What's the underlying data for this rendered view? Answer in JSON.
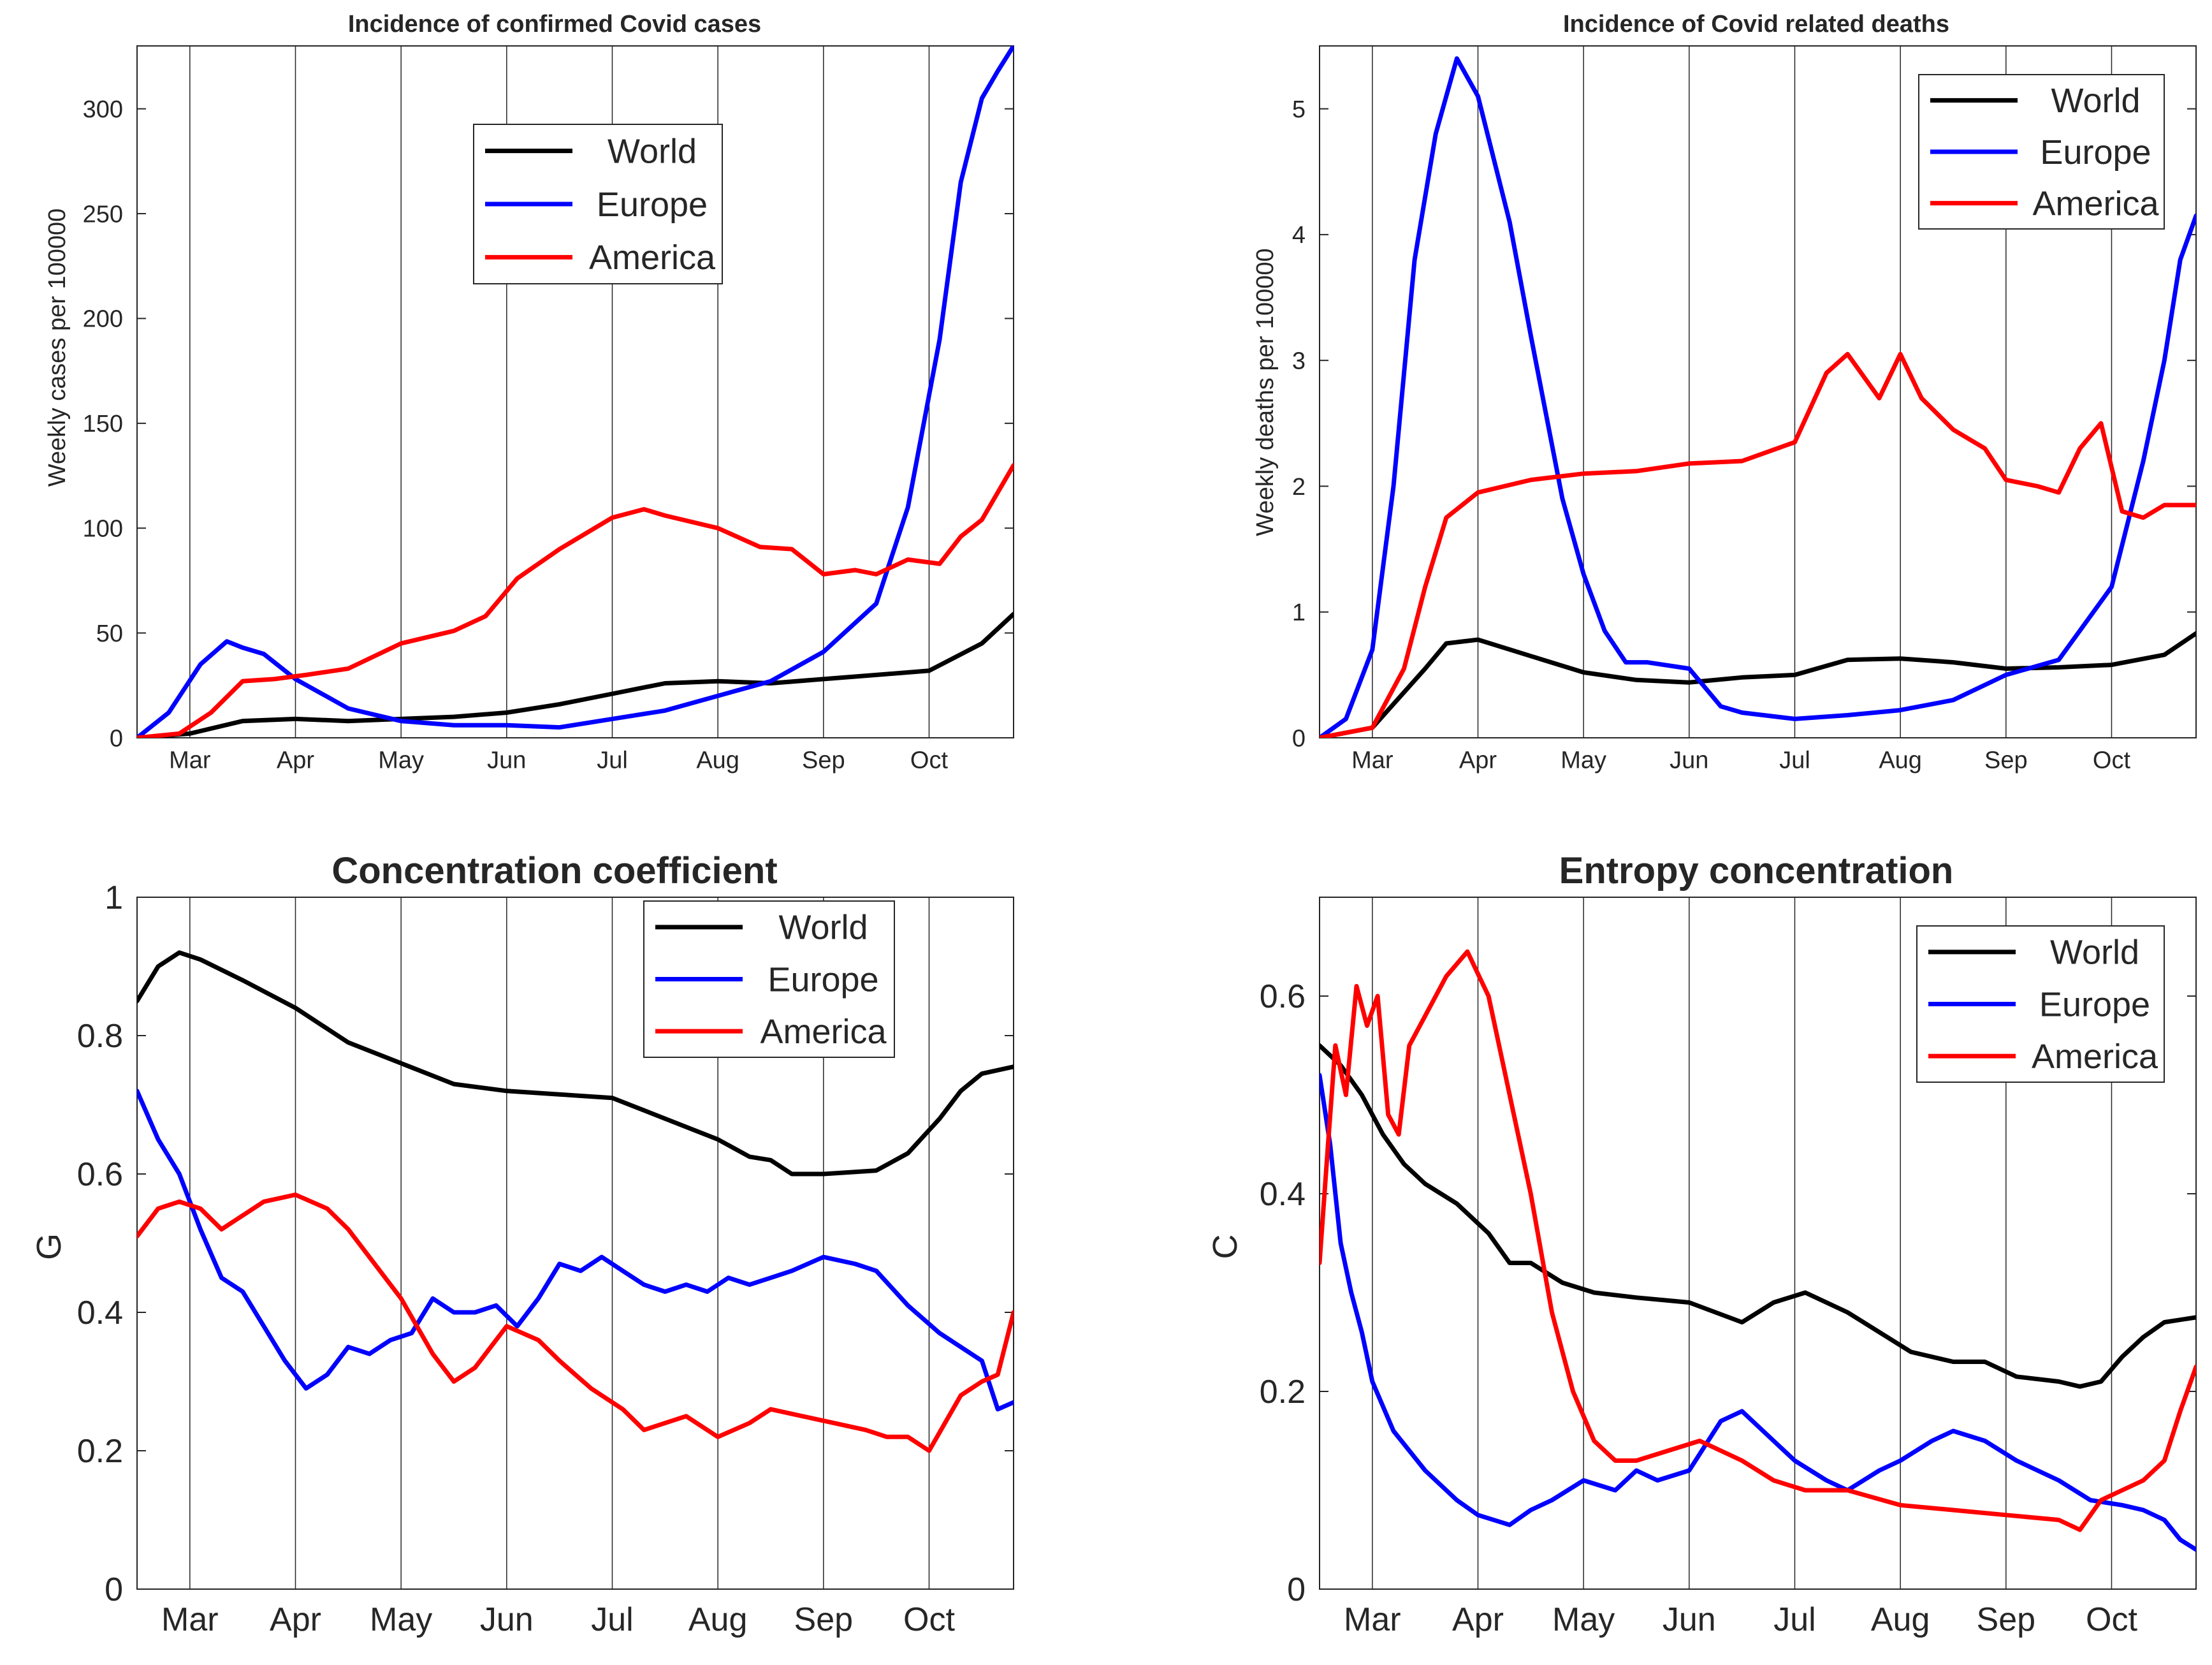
{
  "chart_data": [
    {
      "type": "line",
      "title": "Incidence of confirmed Covid cases",
      "xlabel": "",
      "ylabel": "Weekly cases per 100000",
      "x_ticks": [
        "Mar",
        "Apr",
        "May",
        "Jun",
        "Jul",
        "Aug",
        "Sep",
        "Oct"
      ],
      "xlim": [
        0,
        8.3
      ],
      "ylim": [
        0,
        330
      ],
      "y_ticks": [
        0,
        50,
        100,
        150,
        200,
        250,
        300
      ],
      "legend_position": "upper-center",
      "series": [
        {
          "name": "World",
          "color": "#000000",
          "x": [
            0,
            0.5,
            1.0,
            1.5,
            2.0,
            2.5,
            3.0,
            3.5,
            4.0,
            4.5,
            5.0,
            5.5,
            6.0,
            6.5,
            7.0,
            7.5,
            8.0,
            8.3
          ],
          "y": [
            0,
            2,
            8,
            9,
            8,
            9,
            10,
            12,
            16,
            21,
            26,
            27,
            26,
            28,
            30,
            32,
            45,
            59
          ]
        },
        {
          "name": "Europe",
          "color": "#0000ff",
          "x": [
            0,
            0.3,
            0.6,
            0.85,
            1.0,
            1.2,
            1.5,
            2.0,
            2.5,
            3.0,
            3.5,
            4.0,
            4.5,
            5.0,
            5.5,
            6.0,
            6.5,
            7.0,
            7.3,
            7.6,
            7.8,
            8.0,
            8.15,
            8.3
          ],
          "y": [
            0,
            12,
            35,
            46,
            43,
            40,
            28,
            14,
            8,
            6,
            6,
            5,
            9,
            13,
            20,
            27,
            41,
            64,
            110,
            190,
            265,
            305,
            318,
            330
          ]
        },
        {
          "name": "America",
          "color": "#ff0000",
          "x": [
            0,
            0.4,
            0.7,
            1.0,
            1.3,
            1.6,
            2.0,
            2.5,
            3.0,
            3.3,
            3.6,
            4.0,
            4.5,
            4.8,
            5.0,
            5.5,
            5.9,
            6.2,
            6.5,
            6.8,
            7.0,
            7.3,
            7.6,
            7.8,
            8.0,
            8.3
          ],
          "y": [
            0,
            2,
            12,
            27,
            28,
            30,
            33,
            45,
            51,
            58,
            76,
            90,
            105,
            109,
            106,
            100,
            91,
            90,
            78,
            80,
            78,
            85,
            83,
            96,
            104,
            130
          ]
        }
      ]
    },
    {
      "type": "line",
      "title": "Incidence of Covid related deaths",
      "xlabel": "",
      "ylabel": "Weekly deaths per 100000",
      "x_ticks": [
        "Mar",
        "Apr",
        "May",
        "Jun",
        "Jul",
        "Aug",
        "Sep",
        "Oct"
      ],
      "xlim": [
        0,
        8.3
      ],
      "ylim": [
        0,
        5.5
      ],
      "y_ticks": [
        0,
        1,
        2,
        3,
        4,
        5
      ],
      "legend_position": "top-right",
      "series": [
        {
          "name": "World",
          "color": "#000000",
          "x": [
            0,
            0.5,
            1.0,
            1.2,
            1.5,
            2.0,
            2.5,
            3.0,
            3.5,
            4.0,
            4.5,
            5.0,
            5.5,
            6.0,
            6.5,
            7.0,
            7.5,
            8.0,
            8.3
          ],
          "y": [
            0,
            0.08,
            0.55,
            0.75,
            0.78,
            0.65,
            0.52,
            0.46,
            0.44,
            0.48,
            0.5,
            0.62,
            0.63,
            0.6,
            0.55,
            0.56,
            0.58,
            0.66,
            0.83
          ]
        },
        {
          "name": "Europe",
          "color": "#0000ff",
          "x": [
            0,
            0.25,
            0.5,
            0.7,
            0.9,
            1.1,
            1.3,
            1.5,
            1.8,
            2.0,
            2.3,
            2.5,
            2.7,
            2.9,
            3.1,
            3.5,
            3.8,
            4.0,
            4.5,
            5.0,
            5.5,
            6.0,
            6.5,
            7.0,
            7.5,
            7.8,
            8.0,
            8.15,
            8.3
          ],
          "y": [
            0,
            0.15,
            0.7,
            2.0,
            3.8,
            4.8,
            5.4,
            5.1,
            4.1,
            3.2,
            1.9,
            1.3,
            0.85,
            0.6,
            0.6,
            0.55,
            0.25,
            0.2,
            0.15,
            0.18,
            0.22,
            0.3,
            0.5,
            0.62,
            1.2,
            2.2,
            3.0,
            3.8,
            4.15
          ]
        },
        {
          "name": "America",
          "color": "#ff0000",
          "x": [
            0,
            0.5,
            0.8,
            1.0,
            1.2,
            1.5,
            2.0,
            2.5,
            3.0,
            3.5,
            4.0,
            4.5,
            4.8,
            5.0,
            5.3,
            5.5,
            5.7,
            6.0,
            6.3,
            6.5,
            6.8,
            7.0,
            7.2,
            7.4,
            7.6,
            7.8,
            8.0,
            8.3
          ],
          "y": [
            0,
            0.08,
            0.55,
            1.2,
            1.75,
            1.95,
            2.05,
            2.1,
            2.12,
            2.18,
            2.2,
            2.35,
            2.9,
            3.05,
            2.7,
            3.05,
            2.7,
            2.45,
            2.3,
            2.05,
            2.0,
            1.95,
            2.3,
            2.5,
            1.8,
            1.75,
            1.85,
            1.85
          ]
        }
      ]
    },
    {
      "type": "line",
      "title": "Concentration coefficient",
      "xlabel": "",
      "ylabel": "G",
      "x_ticks": [
        "Mar",
        "Apr",
        "May",
        "Jun",
        "Jul",
        "Aug",
        "Sep",
        "Oct"
      ],
      "xlim": [
        0,
        8.3
      ],
      "ylim": [
        0,
        1
      ],
      "y_ticks": [
        0,
        0.2,
        0.4,
        0.6,
        0.8,
        1
      ],
      "legend_position": "top-right",
      "series": [
        {
          "name": "World",
          "color": "#000000",
          "x": [
            0,
            0.2,
            0.4,
            0.6,
            1.0,
            1.5,
            2.0,
            2.5,
            3.0,
            3.5,
            4.0,
            4.5,
            5.0,
            5.5,
            5.8,
            6.0,
            6.2,
            6.5,
            7.0,
            7.3,
            7.6,
            7.8,
            8.0,
            8.3
          ],
          "y": [
            0.85,
            0.9,
            0.92,
            0.91,
            0.88,
            0.84,
            0.79,
            0.76,
            0.73,
            0.72,
            0.715,
            0.71,
            0.68,
            0.65,
            0.625,
            0.62,
            0.6,
            0.6,
            0.605,
            0.63,
            0.68,
            0.72,
            0.745,
            0.755
          ]
        },
        {
          "name": "Europe",
          "color": "#0000ff",
          "x": [
            0,
            0.2,
            0.4,
            0.6,
            0.8,
            1.0,
            1.2,
            1.4,
            1.6,
            1.8,
            2.0,
            2.2,
            2.4,
            2.6,
            2.8,
            3.0,
            3.2,
            3.4,
            3.6,
            3.8,
            4.0,
            4.2,
            4.4,
            4.6,
            4.8,
            5.0,
            5.2,
            5.4,
            5.6,
            5.8,
            6.0,
            6.2,
            6.5,
            6.8,
            7.0,
            7.3,
            7.6,
            7.8,
            8.0,
            8.15,
            8.3
          ],
          "y": [
            0.72,
            0.65,
            0.6,
            0.52,
            0.45,
            0.43,
            0.38,
            0.33,
            0.29,
            0.31,
            0.35,
            0.34,
            0.36,
            0.37,
            0.42,
            0.4,
            0.4,
            0.41,
            0.38,
            0.42,
            0.47,
            0.46,
            0.48,
            0.46,
            0.44,
            0.43,
            0.44,
            0.43,
            0.45,
            0.44,
            0.45,
            0.46,
            0.48,
            0.47,
            0.46,
            0.41,
            0.37,
            0.35,
            0.33,
            0.26,
            0.27
          ]
        },
        {
          "name": "America",
          "color": "#ff0000",
          "x": [
            0,
            0.2,
            0.4,
            0.6,
            0.8,
            1.0,
            1.2,
            1.5,
            1.8,
            2.0,
            2.2,
            2.5,
            2.8,
            3.0,
            3.2,
            3.5,
            3.8,
            4.0,
            4.3,
            4.6,
            4.8,
            5.0,
            5.2,
            5.5,
            5.8,
            6.0,
            6.3,
            6.6,
            6.9,
            7.1,
            7.3,
            7.5,
            7.8,
            8.0,
            8.15,
            8.3
          ],
          "y": [
            0.51,
            0.55,
            0.56,
            0.55,
            0.52,
            0.54,
            0.56,
            0.57,
            0.55,
            0.52,
            0.48,
            0.42,
            0.34,
            0.3,
            0.32,
            0.38,
            0.36,
            0.33,
            0.29,
            0.26,
            0.23,
            0.24,
            0.25,
            0.22,
            0.24,
            0.26,
            0.25,
            0.24,
            0.23,
            0.22,
            0.22,
            0.2,
            0.28,
            0.3,
            0.31,
            0.4
          ]
        }
      ]
    },
    {
      "type": "line",
      "title": "Entropy concentration",
      "xlabel": "",
      "ylabel": "C",
      "x_ticks": [
        "Mar",
        "Apr",
        "May",
        "Jun",
        "Jul",
        "Aug",
        "Sep",
        "Oct"
      ],
      "xlim": [
        0,
        8.3
      ],
      "ylim": [
        0,
        0.7
      ],
      "y_ticks": [
        0,
        0.2,
        0.4,
        0.6
      ],
      "legend_position": "top-right",
      "series": [
        {
          "name": "World",
          "color": "#000000",
          "x": [
            0,
            0.2,
            0.4,
            0.6,
            0.8,
            1.0,
            1.3,
            1.6,
            1.8,
            2.0,
            2.3,
            2.6,
            3.0,
            3.5,
            4.0,
            4.3,
            4.6,
            5.0,
            5.3,
            5.6,
            6.0,
            6.3,
            6.6,
            7.0,
            7.2,
            7.4,
            7.6,
            7.8,
            8.0,
            8.3
          ],
          "y": [
            0.55,
            0.53,
            0.5,
            0.46,
            0.43,
            0.41,
            0.39,
            0.36,
            0.33,
            0.33,
            0.31,
            0.3,
            0.295,
            0.29,
            0.27,
            0.29,
            0.3,
            0.28,
            0.26,
            0.24,
            0.23,
            0.23,
            0.215,
            0.21,
            0.205,
            0.21,
            0.235,
            0.255,
            0.27,
            0.275
          ]
        },
        {
          "name": "Europe",
          "color": "#0000ff",
          "x": [
            0,
            0.1,
            0.2,
            0.3,
            0.4,
            0.5,
            0.7,
            1.0,
            1.3,
            1.5,
            1.8,
            2.0,
            2.2,
            2.5,
            2.8,
            3.0,
            3.2,
            3.5,
            3.8,
            4.0,
            4.3,
            4.5,
            4.8,
            5.0,
            5.3,
            5.5,
            5.8,
            6.0,
            6.3,
            6.6,
            7.0,
            7.3,
            7.6,
            7.8,
            8.0,
            8.15,
            8.3
          ],
          "y": [
            0.52,
            0.45,
            0.35,
            0.3,
            0.26,
            0.21,
            0.16,
            0.12,
            0.09,
            0.075,
            0.065,
            0.08,
            0.09,
            0.11,
            0.1,
            0.12,
            0.11,
            0.12,
            0.17,
            0.18,
            0.15,
            0.13,
            0.11,
            0.1,
            0.12,
            0.13,
            0.15,
            0.16,
            0.15,
            0.13,
            0.11,
            0.09,
            0.085,
            0.08,
            0.07,
            0.05,
            0.04
          ]
        },
        {
          "name": "America",
          "color": "#ff0000",
          "x": [
            0,
            0.08,
            0.15,
            0.25,
            0.35,
            0.45,
            0.55,
            0.65,
            0.75,
            0.85,
            1.0,
            1.2,
            1.4,
            1.6,
            1.8,
            2.0,
            2.2,
            2.4,
            2.6,
            2.8,
            3.0,
            3.3,
            3.6,
            4.0,
            4.3,
            4.6,
            5.0,
            5.5,
            6.0,
            6.5,
            7.0,
            7.2,
            7.4,
            7.6,
            7.8,
            8.0,
            8.15,
            8.3
          ],
          "y": [
            0.33,
            0.45,
            0.55,
            0.5,
            0.61,
            0.57,
            0.6,
            0.48,
            0.46,
            0.55,
            0.58,
            0.62,
            0.645,
            0.6,
            0.5,
            0.4,
            0.28,
            0.2,
            0.15,
            0.13,
            0.13,
            0.14,
            0.15,
            0.13,
            0.11,
            0.1,
            0.1,
            0.085,
            0.08,
            0.075,
            0.07,
            0.06,
            0.09,
            0.1,
            0.11,
            0.13,
            0.18,
            0.225
          ]
        }
      ]
    }
  ]
}
